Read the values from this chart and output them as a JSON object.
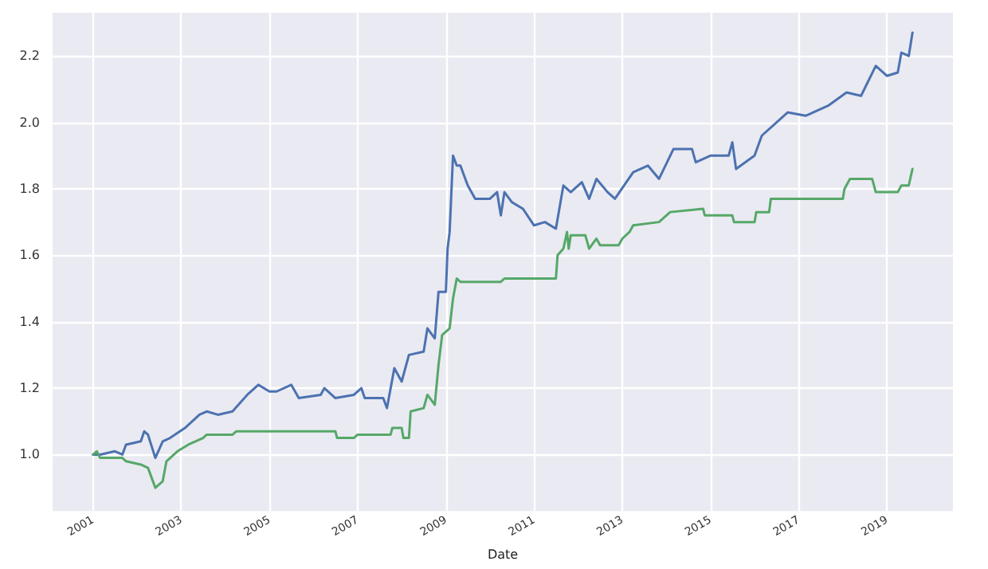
{
  "chart_data": {
    "type": "line",
    "xlabel": "Date",
    "grid": true,
    "marker": "none",
    "line_style": "solid",
    "xlim": [
      "2000-02",
      "2020-07"
    ],
    "xticks": [
      "2001",
      "2003",
      "2005",
      "2007",
      "2009",
      "2011",
      "2013",
      "2015",
      "2017",
      "2019"
    ],
    "ylim": [
      0.83,
      2.33
    ],
    "yticks": [
      {
        "value": 1.0,
        "label": "1.0"
      },
      {
        "value": 1.2,
        "label": "1.2"
      },
      {
        "value": 1.4,
        "label": "1.4"
      },
      {
        "value": 1.6,
        "label": "1.6"
      },
      {
        "value": 1.8,
        "label": "1.8"
      },
      {
        "value": 2.0,
        "label": "2.0"
      },
      {
        "value": 2.2,
        "label": "2.2"
      }
    ],
    "series": [
      {
        "color": "#4c72b0",
        "x": [
          "2001-01",
          "2001-03",
          "2001-07",
          "2001-09",
          "2001-10",
          "2002-02",
          "2002-03",
          "2002-04",
          "2002-06",
          "2002-08",
          "2002-10",
          "2003-02",
          "2003-06",
          "2003-08",
          "2003-11",
          "2004-03",
          "2004-07",
          "2004-10",
          "2005-01",
          "2005-03",
          "2005-07",
          "2005-09",
          "2006-03",
          "2006-04",
          "2006-07",
          "2006-12",
          "2007-02",
          "2007-03",
          "2007-08",
          "2007-09",
          "2007-11",
          "2008-01",
          "2008-03",
          "2008-07",
          "2008-08",
          "2008-10",
          "2008-11",
          "2009-01",
          "2009-01-15",
          "2009-02",
          "2009-03",
          "2009-04",
          "2009-05",
          "2009-07",
          "2009-09",
          "2010-01",
          "2010-03",
          "2010-04",
          "2010-05",
          "2010-07",
          "2010-10",
          "2011-01",
          "2011-04",
          "2011-07",
          "2011-09",
          "2011-11",
          "2012-02",
          "2012-04",
          "2012-06",
          "2012-09",
          "2012-11",
          "2013-04",
          "2013-08",
          "2013-11",
          "2014-03",
          "2014-04",
          "2014-08",
          "2014-09",
          "2015-01",
          "2015-06",
          "2015-07",
          "2015-08",
          "2016-01",
          "2016-03",
          "2016-07",
          "2016-10",
          "2017-03",
          "2017-09",
          "2018-02",
          "2018-06",
          "2018-10",
          "2019-01",
          "2019-04",
          "2019-05",
          "2019-07",
          "2019-08"
        ],
        "values": [
          1.0,
          1.0,
          1.01,
          1.0,
          1.03,
          1.04,
          1.07,
          1.06,
          0.99,
          1.04,
          1.05,
          1.08,
          1.12,
          1.13,
          1.12,
          1.13,
          1.18,
          1.21,
          1.19,
          1.19,
          1.21,
          1.17,
          1.18,
          1.2,
          1.17,
          1.18,
          1.2,
          1.17,
          1.17,
          1.14,
          1.26,
          1.22,
          1.3,
          1.31,
          1.38,
          1.35,
          1.49,
          1.49,
          1.62,
          1.67,
          1.9,
          1.87,
          1.87,
          1.81,
          1.77,
          1.77,
          1.79,
          1.72,
          1.79,
          1.76,
          1.74,
          1.69,
          1.7,
          1.68,
          1.81,
          1.79,
          1.82,
          1.77,
          1.83,
          1.79,
          1.77,
          1.85,
          1.87,
          1.83,
          1.92,
          1.92,
          1.92,
          1.88,
          1.9,
          1.9,
          1.94,
          1.86,
          1.9,
          1.96,
          2.0,
          2.03,
          2.02,
          2.05,
          2.09,
          2.08,
          2.17,
          2.14,
          2.15,
          2.21,
          2.2,
          2.27
        ]
      },
      {
        "color": "#55a868",
        "x": [
          "2001-01",
          "2001-02",
          "2001-03",
          "2001-09",
          "2001-10",
          "2002-02",
          "2002-04",
          "2002-06",
          "2002-08",
          "2002-09",
          "2002-12",
          "2003-03",
          "2003-07",
          "2003-08",
          "2004-03",
          "2004-04",
          "2006-07",
          "2006-07-15",
          "2006-12",
          "2007-01",
          "2007-10",
          "2007-10-15",
          "2008-01",
          "2008-01-15",
          "2008-03",
          "2008-03-15",
          "2008-07",
          "2008-08",
          "2008-10",
          "2008-11",
          "2008-12",
          "2009-02",
          "2009-03",
          "2009-04",
          "2009-05",
          "2010-04",
          "2010-05",
          "2011-07",
          "2011-07-15",
          "2011-09",
          "2011-10",
          "2011-10-15",
          "2011-11",
          "2012-03",
          "2012-04",
          "2012-06",
          "2012-07",
          "2012-12",
          "2013-01",
          "2013-03",
          "2013-04",
          "2013-11",
          "2014-02",
          "2014-11",
          "2014-11-15",
          "2015-07",
          "2015-07-15",
          "2016-01",
          "2016-01-15",
          "2016-05",
          "2016-05-15",
          "2018-01",
          "2018-01-15",
          "2018-03",
          "2018-09",
          "2018-10",
          "2019-04",
          "2019-05",
          "2019-07",
          "2019-08"
        ],
        "values": [
          1.0,
          1.01,
          0.99,
          0.99,
          0.98,
          0.97,
          0.96,
          0.9,
          0.92,
          0.98,
          1.01,
          1.03,
          1.05,
          1.06,
          1.06,
          1.07,
          1.07,
          1.05,
          1.05,
          1.06,
          1.06,
          1.08,
          1.08,
          1.05,
          1.05,
          1.13,
          1.14,
          1.18,
          1.15,
          1.27,
          1.36,
          1.38,
          1.47,
          1.53,
          1.52,
          1.52,
          1.53,
          1.53,
          1.6,
          1.62,
          1.67,
          1.62,
          1.66,
          1.66,
          1.62,
          1.65,
          1.63,
          1.63,
          1.65,
          1.67,
          1.69,
          1.7,
          1.73,
          1.74,
          1.72,
          1.72,
          1.7,
          1.7,
          1.73,
          1.73,
          1.77,
          1.77,
          1.8,
          1.83,
          1.83,
          1.79,
          1.79,
          1.81,
          1.81,
          1.86
        ]
      }
    ]
  }
}
